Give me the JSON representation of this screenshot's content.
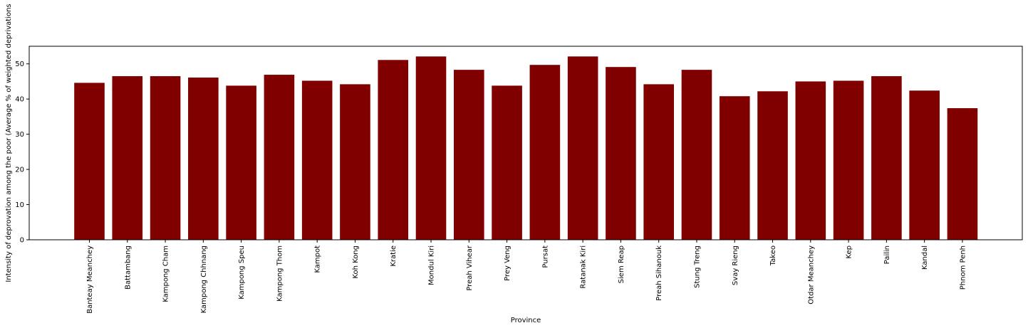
{
  "chart_data": {
    "type": "bar",
    "title": "",
    "xlabel": "Province",
    "ylabel": "Intensity of deprovation among the poor (Average % of weighted deprivations",
    "ylim": [
      0,
      55
    ],
    "yticks": [
      0,
      10,
      20,
      30,
      40,
      50
    ],
    "grid": false,
    "bar_color": "#800000",
    "categories": [
      "Banteay Meanchey",
      "Battambang",
      "Kampong Cham",
      "Kampong Chhnang",
      "Kampong Speu",
      "Kampong Thom",
      "Kampot",
      "Koh Kong",
      "Kratie",
      "Mondul Kiri",
      "Preah Vihear",
      "Prey Veng",
      "Pursat",
      "Ratanak Kiri",
      "Siem Reap",
      "Preah Sihanouk",
      "Stung Treng",
      "Svay Rieng",
      "Takeo",
      "Otdar Meanchey",
      "Kep",
      "Pailin",
      "Kandal",
      "Phnom Penh"
    ],
    "values": [
      44.6,
      46.5,
      46.5,
      46.1,
      43.8,
      46.9,
      45.2,
      44.2,
      51.1,
      52.1,
      48.3,
      43.8,
      49.7,
      52.1,
      49.1,
      44.2,
      48.3,
      40.8,
      42.2,
      45.0,
      45.2,
      46.5,
      42.4,
      37.4
    ]
  }
}
